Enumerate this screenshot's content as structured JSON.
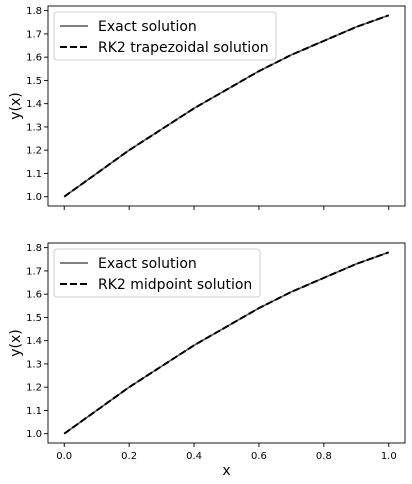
{
  "chart_data": [
    {
      "type": "line",
      "title": "",
      "xlabel": "",
      "ylabel": "y(x)",
      "xlim": [
        -0.05,
        1.05
      ],
      "ylim": [
        0.96,
        1.82
      ],
      "xticks": [
        0.0,
        0.2,
        0.4,
        0.6,
        0.8,
        1.0
      ],
      "xtick_labels": [],
      "yticks": [
        1.0,
        1.1,
        1.2,
        1.3,
        1.4,
        1.5,
        1.6,
        1.7,
        1.8
      ],
      "ytick_labels": [
        "1.0",
        "1.1",
        "1.2",
        "1.3",
        "1.4",
        "1.5",
        "1.6",
        "1.7",
        "1.8"
      ],
      "grid": false,
      "legend_position": "top-left",
      "x": [
        0.0,
        0.1,
        0.2,
        0.3,
        0.4,
        0.5,
        0.6,
        0.7,
        0.8,
        0.9,
        1.0
      ],
      "series": [
        {
          "name": "Exact solution",
          "color": "#555555",
          "style": "solid",
          "values": [
            1.0,
            1.1,
            1.2,
            1.29,
            1.38,
            1.46,
            1.54,
            1.61,
            1.67,
            1.73,
            1.78
          ]
        },
        {
          "name": "RK2 trapezoidal solution",
          "color": "#000000",
          "style": "dashed",
          "values": [
            1.0,
            1.1,
            1.2,
            1.29,
            1.38,
            1.46,
            1.54,
            1.61,
            1.67,
            1.73,
            1.78
          ]
        }
      ]
    },
    {
      "type": "line",
      "title": "",
      "xlabel": "x",
      "ylabel": "y(x)",
      "xlim": [
        -0.05,
        1.05
      ],
      "ylim": [
        0.96,
        1.82
      ],
      "xticks": [
        0.0,
        0.2,
        0.4,
        0.6,
        0.8,
        1.0
      ],
      "xtick_labels": [
        "0.0",
        "0.2",
        "0.4",
        "0.6",
        "0.8",
        "1.0"
      ],
      "yticks": [
        1.0,
        1.1,
        1.2,
        1.3,
        1.4,
        1.5,
        1.6,
        1.7,
        1.8
      ],
      "ytick_labels": [
        "1.0",
        "1.1",
        "1.2",
        "1.3",
        "1.4",
        "1.5",
        "1.6",
        "1.7",
        "1.8"
      ],
      "grid": false,
      "legend_position": "top-left",
      "x": [
        0.0,
        0.1,
        0.2,
        0.3,
        0.4,
        0.5,
        0.6,
        0.7,
        0.8,
        0.9,
        1.0
      ],
      "series": [
        {
          "name": "Exact solution",
          "color": "#555555",
          "style": "solid",
          "values": [
            1.0,
            1.1,
            1.2,
            1.29,
            1.38,
            1.46,
            1.54,
            1.61,
            1.67,
            1.73,
            1.78
          ]
        },
        {
          "name": "RK2 midpoint solution",
          "color": "#000000",
          "style": "dashed",
          "values": [
            1.0,
            1.1,
            1.2,
            1.29,
            1.38,
            1.46,
            1.54,
            1.61,
            1.67,
            1.73,
            1.78
          ]
        }
      ]
    }
  ]
}
